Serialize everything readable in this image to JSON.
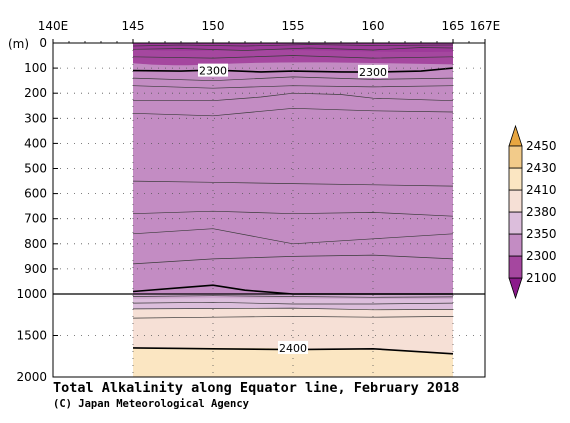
{
  "chart_data": {
    "type": "heatmap",
    "title": "Total Alkalinity along Equator line, February 2018",
    "credit": "(C) Japan Meteorological Agency",
    "x_axis": {
      "range": [
        140,
        167
      ],
      "data_range": [
        145,
        165
      ],
      "ticks": [
        140,
        145,
        150,
        155,
        160,
        165,
        167
      ],
      "tick_labels": [
        "140E",
        "145",
        "150",
        "155",
        "160",
        "165",
        "167E"
      ],
      "position": "top"
    },
    "y_axis": {
      "unit_label": "(m)",
      "inverted": true,
      "upper_ticks": [
        0,
        100,
        200,
        300,
        400,
        500,
        600,
        700,
        800,
        900,
        1000
      ],
      "lower_ticks": [
        1500,
        2000
      ],
      "tick_labels": [
        "0",
        "100",
        "200",
        "300",
        "400",
        "500",
        "600",
        "700",
        "800",
        "900",
        "1000",
        "1500",
        "2000"
      ],
      "scale_break": 1000,
      "range": [
        0,
        2000
      ]
    },
    "colorbar": {
      "levels": [
        2100,
        2300,
        2350,
        2380,
        2410,
        2430,
        2450
      ],
      "labels": [
        "2100",
        "2300",
        "2350",
        "2380",
        "2410",
        "2430",
        "2450"
      ],
      "colors": [
        "#8b1a8b",
        "#a5479f",
        "#c38cc3",
        "#dcbedc",
        "#f6e0d6",
        "#fbe6c2",
        "#f2cb8a",
        "#e8a640"
      ],
      "extend": "both"
    },
    "contour_labels": [
      {
        "text": "2300",
        "x": 150,
        "depth": 110
      },
      {
        "text": "2300",
        "x": 160,
        "depth": 115
      },
      {
        "text": "2400",
        "x": 155,
        "depth": 1650
      }
    ],
    "grid": "dotted"
  }
}
